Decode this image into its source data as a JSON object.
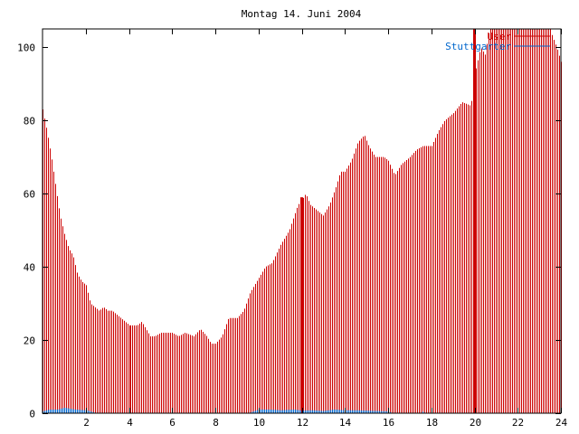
{
  "chart_data": {
    "type": "bar",
    "title": "Montag 14. Juni 2004",
    "xlabel": "",
    "ylabel": "",
    "xlim": [
      0,
      24
    ],
    "ylim": [
      0,
      105
    ],
    "x_ticks": [
      2,
      4,
      6,
      8,
      10,
      12,
      14,
      16,
      18,
      20,
      22,
      24
    ],
    "y_ticks": [
      0,
      20,
      40,
      60,
      80,
      100
    ],
    "grid": false,
    "legend_position": "top-right",
    "series": [
      {
        "name": "User",
        "color": "#cc0000",
        "keypoints": [
          [
            0,
            83
          ],
          [
            0.2,
            77
          ],
          [
            0.4,
            70
          ],
          [
            0.6,
            62
          ],
          [
            0.8,
            54
          ],
          [
            1.0,
            49
          ],
          [
            1.2,
            45
          ],
          [
            1.4,
            43
          ],
          [
            1.6,
            38
          ],
          [
            1.8,
            36
          ],
          [
            2.0,
            35
          ],
          [
            2.2,
            30
          ],
          [
            2.4,
            29
          ],
          [
            2.6,
            28
          ],
          [
            2.8,
            29
          ],
          [
            3.0,
            28
          ],
          [
            3.2,
            28
          ],
          [
            3.4,
            27
          ],
          [
            3.6,
            26
          ],
          [
            3.8,
            25
          ],
          [
            4.0,
            24
          ],
          [
            4.4,
            24
          ],
          [
            4.6,
            25
          ],
          [
            4.8,
            23
          ],
          [
            5.0,
            21
          ],
          [
            5.2,
            21
          ],
          [
            5.5,
            22
          ],
          [
            6.0,
            22
          ],
          [
            6.3,
            21
          ],
          [
            6.6,
            22
          ],
          [
            7.0,
            21
          ],
          [
            7.3,
            23
          ],
          [
            7.6,
            21
          ],
          [
            7.8,
            19
          ],
          [
            8.0,
            19
          ],
          [
            8.3,
            21
          ],
          [
            8.6,
            26
          ],
          [
            9.0,
            26
          ],
          [
            9.3,
            28
          ],
          [
            9.6,
            33
          ],
          [
            10.0,
            37
          ],
          [
            10.3,
            40
          ],
          [
            10.6,
            41
          ],
          [
            11.0,
            46
          ],
          [
            11.4,
            50
          ],
          [
            11.8,
            57
          ],
          [
            12.0,
            58
          ],
          [
            12.2,
            60
          ],
          [
            12.4,
            57
          ],
          [
            12.8,
            55
          ],
          [
            13.0,
            54
          ],
          [
            13.3,
            57
          ],
          [
            13.6,
            62
          ],
          [
            13.8,
            66
          ],
          [
            14.0,
            66
          ],
          [
            14.3,
            69
          ],
          [
            14.6,
            74
          ],
          [
            14.9,
            76
          ],
          [
            15.1,
            73
          ],
          [
            15.4,
            70
          ],
          [
            15.8,
            70
          ],
          [
            16.0,
            69
          ],
          [
            16.3,
            65
          ],
          [
            16.6,
            68
          ],
          [
            17.0,
            70
          ],
          [
            17.3,
            72
          ],
          [
            17.6,
            73
          ],
          [
            18.0,
            73
          ],
          [
            18.3,
            77
          ],
          [
            18.6,
            80
          ],
          [
            19.0,
            82
          ],
          [
            19.4,
            85
          ],
          [
            19.8,
            84
          ],
          [
            20.0,
            92
          ],
          [
            20.3,
            100
          ],
          [
            20.5,
            98
          ],
          [
            20.7,
            105
          ],
          [
            21.0,
            105
          ],
          [
            22.0,
            105
          ],
          [
            23.0,
            105
          ],
          [
            23.5,
            105
          ],
          [
            23.6,
            103
          ],
          [
            23.8,
            100
          ],
          [
            24.0,
            96
          ]
        ],
        "highlights": [
          [
            12,
            59
          ],
          [
            20,
            105
          ]
        ]
      },
      {
        "name": "Stuttgarter",
        "color": "#0066cc",
        "keypoints": [
          [
            0,
            0.5
          ],
          [
            0.3,
            1
          ],
          [
            0.7,
            1
          ],
          [
            1.0,
            1.5
          ],
          [
            1.5,
            1
          ],
          [
            2.0,
            0.8
          ],
          [
            2.5,
            0
          ],
          [
            9.5,
            0
          ],
          [
            10.0,
            1
          ],
          [
            10.5,
            1
          ],
          [
            11.0,
            0.8
          ],
          [
            11.6,
            1
          ],
          [
            12.0,
            0.7
          ],
          [
            12.5,
            0.8
          ],
          [
            13.0,
            0.6
          ],
          [
            13.5,
            1
          ],
          [
            14.0,
            0.8
          ],
          [
            14.5,
            0.8
          ],
          [
            15.0,
            0.7
          ],
          [
            15.5,
            0.6
          ],
          [
            16.0,
            0.5
          ],
          [
            16.2,
            0
          ],
          [
            17.5,
            0
          ],
          [
            17.6,
            0.5
          ],
          [
            17.7,
            0
          ],
          [
            24.0,
            0
          ]
        ]
      }
    ]
  }
}
